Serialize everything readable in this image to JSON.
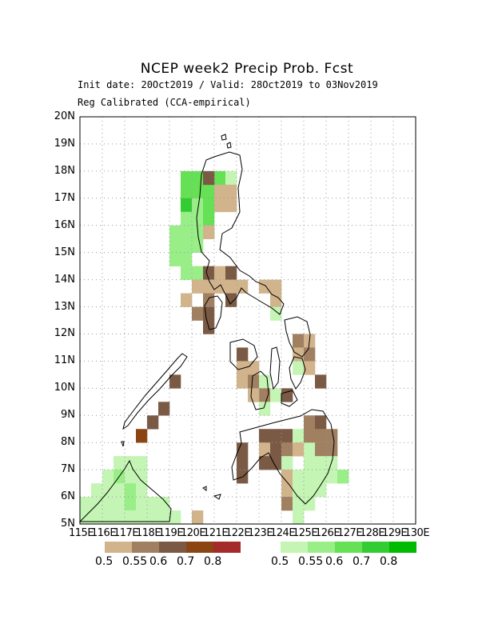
{
  "title": "NCEP week2 Precip Prob. Fcst",
  "subtitle_line1": "Init date: 20Oct2019 / Valid: 28Oct2019 to 03Nov2019",
  "subtitle_line2": "Reg Calibrated (CCA-empirical)",
  "lat_labels": [
    "5N",
    "6N",
    "7N",
    "8N",
    "9N",
    "10N",
    "11N",
    "12N",
    "13N",
    "14N",
    "15N",
    "16N",
    "17N",
    "18N",
    "19N",
    "20N"
  ],
  "lon_labels": [
    "115E",
    "116E",
    "117E",
    "118E",
    "119E",
    "120E",
    "121E",
    "122E",
    "123E",
    "124E",
    "125E",
    "126E",
    "127E",
    "128E",
    "129E",
    "130E"
  ],
  "dry_legend": {
    "labels": [
      "0.5",
      "0.55",
      "0.6",
      "0.7",
      "0.8"
    ],
    "colors": [
      "#d2b48c",
      "#a08060",
      "#7a5a44",
      "#8b4513",
      "#a52a2a"
    ]
  },
  "wet_legend": {
    "labels": [
      "0.5",
      "0.55",
      "0.6",
      "0.7",
      "0.8"
    ],
    "colors": [
      "#c4f5b4",
      "#99ee88",
      "#66e055",
      "#33cc33",
      "#00bb00"
    ]
  },
  "grid": "dotted",
  "bounds": {
    "lon": [
      115,
      130
    ],
    "lat": [
      5,
      20
    ]
  },
  "cell_size_deg": 0.5,
  "cells": [
    {
      "lon": 119.5,
      "lat": 17.5,
      "c": 2
    },
    {
      "lon": 120.0,
      "lat": 17.5,
      "c": 2
    },
    {
      "lon": 120.5,
      "lat": 17.5,
      "c": 2
    },
    {
      "lon": 121.0,
      "lat": 17.5,
      "c": 2
    },
    {
      "lon": 121.5,
      "lat": 17.5,
      "c": 0
    },
    {
      "lon": 119.5,
      "lat": 17.0,
      "c": 2
    },
    {
      "lon": 120.0,
      "lat": 17.0,
      "c": 2
    },
    {
      "lon": 120.5,
      "lat": 17.0,
      "c": 2
    },
    {
      "lon": 121.0,
      "lat": 17.0,
      "c": 2
    },
    {
      "lon": 119.5,
      "lat": 16.5,
      "c": 3
    },
    {
      "lon": 120.0,
      "lat": 16.5,
      "c": 1
    },
    {
      "lon": 120.5,
      "lat": 16.5,
      "c": 2
    },
    {
      "lon": 121.0,
      "lat": 16.5,
      "c": 2
    },
    {
      "lon": 119.5,
      "lat": 16.0,
      "c": 1
    },
    {
      "lon": 120.0,
      "lat": 16.0,
      "c": 1
    },
    {
      "lon": 120.5,
      "lat": 16.0,
      "c": 2
    },
    {
      "lon": 119.0,
      "lat": 15.5,
      "c": 1
    },
    {
      "lon": 119.5,
      "lat": 15.5,
      "c": 1
    },
    {
      "lon": 120.0,
      "lat": 15.5,
      "c": 1
    },
    {
      "lon": 120.5,
      "lat": 15.5,
      "c": 1
    },
    {
      "lon": 119.0,
      "lat": 15.0,
      "c": 1
    },
    {
      "lon": 119.5,
      "lat": 15.0,
      "c": 1
    },
    {
      "lon": 120.0,
      "lat": 15.0,
      "c": 1
    },
    {
      "lon": 119.0,
      "lat": 14.5,
      "c": 1
    },
    {
      "lon": 119.5,
      "lat": 14.5,
      "c": 1
    },
    {
      "lon": 119.5,
      "lat": 14.0,
      "c": 1
    },
    {
      "lon": 120.0,
      "lat": 14.0,
      "c": 1
    },
    {
      "lon": 120.5,
      "lat": 17.5,
      "d": 2
    },
    {
      "lon": 121.0,
      "lat": 17.0,
      "d": 0
    },
    {
      "lon": 121.5,
      "lat": 17.0,
      "d": 0
    },
    {
      "lon": 121.0,
      "lat": 16.5,
      "d": 0
    },
    {
      "lon": 121.5,
      "lat": 16.5,
      "d": 0
    },
    {
      "lon": 120.5,
      "lat": 15.5,
      "d": 0
    },
    {
      "lon": 120.5,
      "lat": 14.0,
      "d": 2
    },
    {
      "lon": 121.0,
      "lat": 14.0,
      "d": 0
    },
    {
      "lon": 121.5,
      "lat": 14.0,
      "d": 2
    },
    {
      "lon": 120.0,
      "lat": 13.5,
      "d": 0
    },
    {
      "lon": 120.5,
      "lat": 13.5,
      "d": 0
    },
    {
      "lon": 121.0,
      "lat": 13.5,
      "d": 0
    },
    {
      "lon": 121.5,
      "lat": 13.5,
      "d": 0
    },
    {
      "lon": 122.0,
      "lat": 13.5,
      "d": 0
    },
    {
      "lon": 123.0,
      "lat": 13.5,
      "d": 0
    },
    {
      "lon": 123.5,
      "lat": 13.5,
      "d": 0
    },
    {
      "lon": 119.5,
      "lat": 13.0,
      "d": 0
    },
    {
      "lon": 120.5,
      "lat": 13.0,
      "d": 1
    },
    {
      "lon": 121.5,
      "lat": 13.0,
      "d": 2
    },
    {
      "lon": 123.5,
      "lat": 13.0,
      "d": 0
    },
    {
      "lon": 120.0,
      "lat": 12.5,
      "d": 1
    },
    {
      "lon": 120.5,
      "lat": 12.5,
      "d": 2
    },
    {
      "lon": 123.5,
      "lat": 12.5,
      "c": 0
    },
    {
      "lon": 120.5,
      "lat": 12.0,
      "d": 2
    },
    {
      "lon": 124.5,
      "lat": 11.5,
      "d": 1
    },
    {
      "lon": 125.0,
      "lat": 11.5,
      "d": 0
    },
    {
      "lon": 122.0,
      "lat": 11.0,
      "d": 2
    },
    {
      "lon": 124.5,
      "lat": 11.0,
      "d": 0
    },
    {
      "lon": 125.0,
      "lat": 11.0,
      "d": 1
    },
    {
      "lon": 122.0,
      "lat": 10.5,
      "d": 0
    },
    {
      "lon": 122.5,
      "lat": 10.5,
      "d": 0
    },
    {
      "lon": 124.5,
      "lat": 10.5,
      "c": 0
    },
    {
      "lon": 125.0,
      "lat": 10.5,
      "d": 0
    },
    {
      "lon": 122.0,
      "lat": 10.0,
      "d": 0
    },
    {
      "lon": 122.5,
      "lat": 10.0,
      "d": 1
    },
    {
      "lon": 123.0,
      "lat": 10.0,
      "c": 0
    },
    {
      "lon": 125.5,
      "lat": 10.0,
      "d": 2
    },
    {
      "lon": 123.0,
      "lat": 9.5,
      "d": 1
    },
    {
      "lon": 123.5,
      "lat": 9.5,
      "c": 0
    },
    {
      "lon": 122.5,
      "lat": 9.5,
      "d": 0
    },
    {
      "lon": 124.0,
      "lat": 9.5,
      "d": 2
    },
    {
      "lon": 123.0,
      "lat": 9.0,
      "c": 0
    },
    {
      "lon": 125.0,
      "lat": 8.5,
      "d": 1
    },
    {
      "lon": 125.5,
      "lat": 8.5,
      "d": 2
    },
    {
      "lon": 123.0,
      "lat": 8.0,
      "d": 2
    },
    {
      "lon": 123.5,
      "lat": 8.0,
      "d": 2
    },
    {
      "lon": 124.0,
      "lat": 8.0,
      "d": 2
    },
    {
      "lon": 124.5,
      "lat": 8.0,
      "c": 0
    },
    {
      "lon": 125.0,
      "lat": 8.0,
      "d": 1
    },
    {
      "lon": 125.5,
      "lat": 8.0,
      "d": 1
    },
    {
      "lon": 126.0,
      "lat": 8.0,
      "d": 1
    },
    {
      "lon": 123.0,
      "lat": 7.5,
      "d": 0
    },
    {
      "lon": 123.5,
      "lat": 7.5,
      "d": 2
    },
    {
      "lon": 124.0,
      "lat": 7.5,
      "d": 1
    },
    {
      "lon": 124.5,
      "lat": 7.5,
      "d": 0
    },
    {
      "lon": 125.0,
      "lat": 7.5,
      "c": 0
    },
    {
      "lon": 125.5,
      "lat": 7.5,
      "d": 1
    },
    {
      "lon": 126.0,
      "lat": 7.5,
      "d": 1
    },
    {
      "lon": 122.0,
      "lat": 7.5,
      "d": 2
    },
    {
      "lon": 122.0,
      "lat": 7.0,
      "d": 2
    },
    {
      "lon": 123.0,
      "lat": 7.0,
      "d": 2
    },
    {
      "lon": 123.5,
      "lat": 7.0,
      "d": 2
    },
    {
      "lon": 124.0,
      "lat": 7.0,
      "c": 0
    },
    {
      "lon": 125.0,
      "lat": 7.0,
      "c": 0
    },
    {
      "lon": 125.5,
      "lat": 7.0,
      "c": 0
    },
    {
      "lon": 126.0,
      "lat": 7.0,
      "c": 0
    },
    {
      "lon": 122.0,
      "lat": 6.5,
      "d": 2
    },
    {
      "lon": 124.0,
      "lat": 6.5,
      "d": 0
    },
    {
      "lon": 124.5,
      "lat": 6.5,
      "c": 0
    },
    {
      "lon": 125.0,
      "lat": 6.5,
      "c": 0
    },
    {
      "lon": 125.5,
      "lat": 6.5,
      "c": 0
    },
    {
      "lon": 126.0,
      "lat": 6.5,
      "c": 0
    },
    {
      "lon": 124.0,
      "lat": 6.0,
      "d": 0
    },
    {
      "lon": 124.5,
      "lat": 6.0,
      "c": 0
    },
    {
      "lon": 125.0,
      "lat": 6.0,
      "c": 0
    },
    {
      "lon": 125.5,
      "lat": 6.0,
      "c": 0
    },
    {
      "lon": 124.0,
      "lat": 5.5,
      "d": 1
    },
    {
      "lon": 124.5,
      "lat": 5.5,
      "c": 0
    },
    {
      "lon": 125.0,
      "lat": 5.5,
      "c": 0
    },
    {
      "lon": 124.5,
      "lat": 5.0,
      "c": 0
    },
    {
      "lon": 126.5,
      "lat": 6.5,
      "c": 1
    },
    {
      "lon": 118.5,
      "lat": 9.0,
      "d": 2
    },
    {
      "lon": 118.0,
      "lat": 8.5,
      "d": 2
    },
    {
      "lon": 117.5,
      "lat": 8.0,
      "d": 3
    },
    {
      "lon": 119.0,
      "lat": 10.0,
      "d": 2
    },
    {
      "lon": 116.5,
      "lat": 7.0,
      "c": 0
    },
    {
      "lon": 117.0,
      "lat": 7.0,
      "c": 0
    },
    {
      "lon": 117.5,
      "lat": 7.0,
      "c": 0
    },
    {
      "lon": 116.0,
      "lat": 6.5,
      "c": 0
    },
    {
      "lon": 116.5,
      "lat": 6.5,
      "c": 1
    },
    {
      "lon": 117.0,
      "lat": 6.5,
      "c": 0
    },
    {
      "lon": 117.5,
      "lat": 6.5,
      "c": 0
    },
    {
      "lon": 115.5,
      "lat": 6.0,
      "c": 0
    },
    {
      "lon": 116.0,
      "lat": 6.0,
      "c": 0
    },
    {
      "lon": 116.5,
      "lat": 6.0,
      "c": 0
    },
    {
      "lon": 117.0,
      "lat": 6.0,
      "c": 1
    },
    {
      "lon": 117.5,
      "lat": 6.0,
      "c": 0
    },
    {
      "lon": 115.0,
      "lat": 5.5,
      "c": 0
    },
    {
      "lon": 115.5,
      "lat": 5.5,
      "c": 0
    },
    {
      "lon": 116.0,
      "lat": 5.5,
      "c": 0
    },
    {
      "lon": 116.5,
      "lat": 5.5,
      "c": 0
    },
    {
      "lon": 117.0,
      "lat": 5.5,
      "c": 1
    },
    {
      "lon": 117.5,
      "lat": 5.5,
      "c": 0
    },
    {
      "lon": 118.0,
      "lat": 5.5,
      "c": 0
    },
    {
      "lon": 118.5,
      "lat": 5.5,
      "c": 0
    },
    {
      "lon": 115.0,
      "lat": 5.0,
      "c": 0
    },
    {
      "lon": 115.5,
      "lat": 5.0,
      "c": 0
    },
    {
      "lon": 116.0,
      "lat": 5.0,
      "c": 0
    },
    {
      "lon": 116.5,
      "lat": 5.0,
      "c": 0
    },
    {
      "lon": 117.0,
      "lat": 5.0,
      "c": 0
    },
    {
      "lon": 117.5,
      "lat": 5.0,
      "c": 0
    },
    {
      "lon": 118.0,
      "lat": 5.0,
      "c": 0
    },
    {
      "lon": 118.5,
      "lat": 5.0,
      "c": 0
    },
    {
      "lon": 119.0,
      "lat": 5.0,
      "c": 0
    },
    {
      "lon": 120.0,
      "lat": 5.0,
      "d": 0
    }
  ]
}
